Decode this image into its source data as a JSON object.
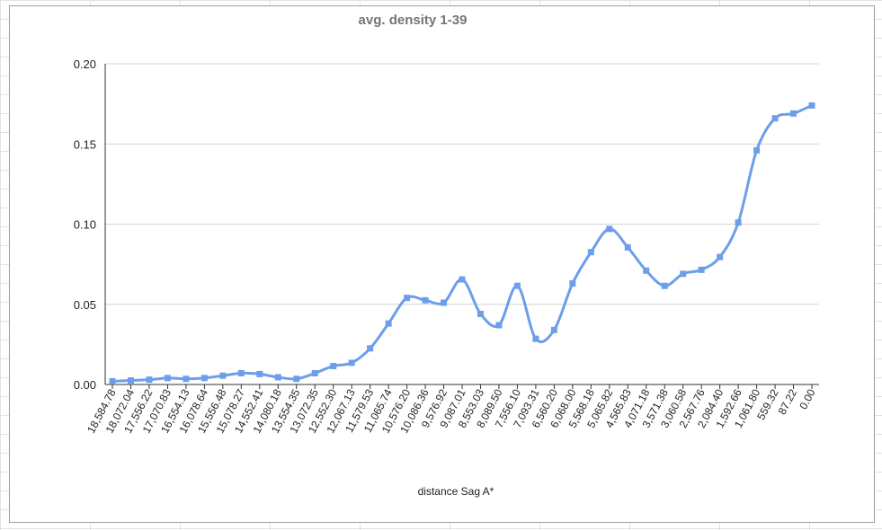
{
  "chart_data": {
    "type": "line",
    "title": "avg. density 1-39",
    "xlabel": "distance Sag A*",
    "ylabel": "",
    "ylim": [
      0,
      0.2
    ],
    "yticks": [
      "0.00",
      "0.05",
      "0.10",
      "0.15",
      "0.20"
    ],
    "grid": true,
    "legend": "none",
    "smooth": true,
    "marker": "square",
    "color": "#6d9eeb",
    "categories": [
      "18,584.78",
      "18,072.04",
      "17,556.22",
      "17,070.83",
      "16,554.13",
      "16,078.64",
      "15,556.48",
      "15,078.27",
      "14,552.41",
      "14,080.18",
      "13,554.35",
      "13,072.35",
      "12,552.30",
      "12,067.13",
      "11,579.53",
      "11,065.74",
      "10,576.20",
      "10,086.36",
      "9,576.92",
      "9,087.01",
      "8,553.03",
      "8,089.50",
      "7,556.10",
      "7,093.31",
      "6,560.20",
      "6,068.00",
      "5,568.18",
      "5,065.82",
      "4,565.83",
      "4,071.18",
      "3,571.38",
      "3,060.58",
      "2,567.76",
      "2,084.40",
      "1,592.66",
      "1,061.80",
      "559.32",
      "87.22",
      "0.00"
    ],
    "values": [
      0.002,
      0.0025,
      0.003,
      0.004,
      0.0035,
      0.004,
      0.0055,
      0.007,
      0.0065,
      0.0045,
      0.0035,
      0.007,
      0.0115,
      0.0135,
      0.0225,
      0.038,
      0.054,
      0.0525,
      0.051,
      0.0655,
      0.044,
      0.037,
      0.0615,
      0.0285,
      0.034,
      0.063,
      0.0825,
      0.097,
      0.0855,
      0.071,
      0.0615,
      0.069,
      0.0715,
      0.0795,
      0.101,
      0.146,
      0.166,
      0.169,
      0.174
    ]
  }
}
